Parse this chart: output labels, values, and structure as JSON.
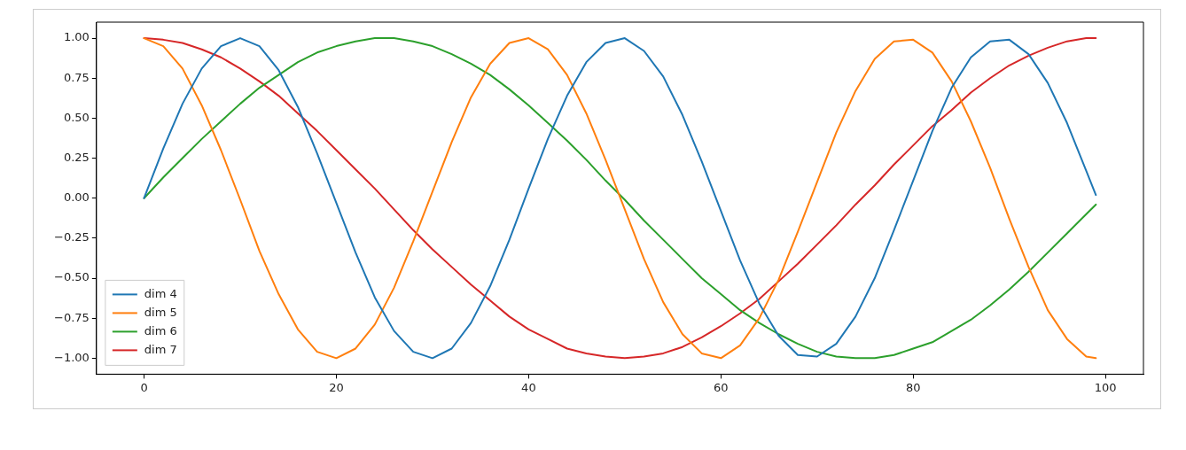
{
  "chart_data": {
    "type": "line",
    "x": [
      0,
      2,
      4,
      6,
      8,
      10,
      12,
      14,
      16,
      18,
      20,
      22,
      24,
      26,
      28,
      30,
      32,
      34,
      36,
      38,
      40,
      42,
      44,
      46,
      48,
      50,
      52,
      54,
      56,
      58,
      60,
      62,
      64,
      66,
      68,
      70,
      72,
      74,
      76,
      78,
      80,
      82,
      84,
      86,
      88,
      90,
      92,
      94,
      96,
      98,
      99
    ],
    "series": [
      {
        "name": "dim 4",
        "color": "#1f77b4",
        "values": [
          0,
          0.31,
          0.59,
          0.81,
          0.95,
          1.0,
          0.95,
          0.8,
          0.57,
          0.28,
          -0.03,
          -0.34,
          -0.62,
          -0.83,
          -0.96,
          -1.0,
          -0.94,
          -0.78,
          -0.55,
          -0.26,
          0.06,
          0.37,
          0.64,
          0.85,
          0.97,
          1.0,
          0.92,
          0.76,
          0.52,
          0.23,
          -0.08,
          -0.39,
          -0.66,
          -0.86,
          -0.98,
          -0.99,
          -0.91,
          -0.74,
          -0.5,
          -0.2,
          0.11,
          0.42,
          0.69,
          0.88,
          0.98,
          0.99,
          0.9,
          0.72,
          0.47,
          0.17,
          0.02
        ]
      },
      {
        "name": "dim 5",
        "color": "#ff7f0e",
        "values": [
          1.0,
          0.95,
          0.81,
          0.58,
          0.3,
          -0.01,
          -0.33,
          -0.6,
          -0.82,
          -0.96,
          -1.0,
          -0.94,
          -0.79,
          -0.56,
          -0.27,
          0.04,
          0.35,
          0.63,
          0.84,
          0.97,
          1.0,
          0.93,
          0.77,
          0.53,
          0.24,
          -0.07,
          -0.38,
          -0.65,
          -0.85,
          -0.97,
          -1.0,
          -0.92,
          -0.75,
          -0.51,
          -0.21,
          0.1,
          0.41,
          0.67,
          0.87,
          0.98,
          0.99,
          0.91,
          0.73,
          0.48,
          0.19,
          -0.13,
          -0.43,
          -0.7,
          -0.88,
          -0.99,
          -1.0
        ]
      },
      {
        "name": "dim 6",
        "color": "#2ca02c",
        "values": [
          0,
          0.13,
          0.25,
          0.37,
          0.48,
          0.59,
          0.69,
          0.77,
          0.85,
          0.91,
          0.95,
          0.98,
          1.0,
          1.0,
          0.98,
          0.95,
          0.9,
          0.84,
          0.77,
          0.68,
          0.58,
          0.47,
          0.36,
          0.24,
          0.11,
          -0.01,
          -0.14,
          -0.26,
          -0.38,
          -0.5,
          -0.6,
          -0.7,
          -0.78,
          -0.85,
          -0.91,
          -0.96,
          -0.99,
          -1.0,
          -1.0,
          -0.98,
          -0.94,
          -0.9,
          -0.83,
          -0.76,
          -0.67,
          -0.57,
          -0.46,
          -0.34,
          -0.22,
          -0.1,
          -0.04
        ]
      },
      {
        "name": "dim 7",
        "color": "#d62728",
        "values": [
          1.0,
          0.99,
          0.97,
          0.93,
          0.88,
          0.81,
          0.73,
          0.64,
          0.53,
          0.42,
          0.3,
          0.18,
          0.06,
          -0.07,
          -0.2,
          -0.32,
          -0.43,
          -0.54,
          -0.64,
          -0.74,
          -0.82,
          -0.88,
          -0.94,
          -0.97,
          -0.99,
          -1.0,
          -0.99,
          -0.97,
          -0.93,
          -0.87,
          -0.8,
          -0.72,
          -0.63,
          -0.52,
          -0.41,
          -0.29,
          -0.17,
          -0.04,
          0.08,
          0.21,
          0.33,
          0.45,
          0.55,
          0.66,
          0.75,
          0.83,
          0.89,
          0.94,
          0.98,
          1.0,
          1.0
        ]
      }
    ],
    "xlim": [
      -4.95,
      103.95
    ],
    "xticks": [
      0,
      20,
      40,
      60,
      80,
      100
    ],
    "ylim": [
      -1.1,
      1.1
    ],
    "yticks": [
      {
        "value": -1,
        "label": "−1.00"
      },
      {
        "value": -0.75,
        "label": "−0.75"
      },
      {
        "value": -0.5,
        "label": "−0.50"
      },
      {
        "value": -0.25,
        "label": "−0.25"
      },
      {
        "value": 0,
        "label": "0.00"
      },
      {
        "value": 0.25,
        "label": "0.25"
      },
      {
        "value": 0.5,
        "label": "0.50"
      },
      {
        "value": 0.75,
        "label": "0.75"
      },
      {
        "value": 1,
        "label": "1.00"
      }
    ],
    "legend": "bottom left",
    "marker": "none",
    "line_style": "solid",
    "grid": false
  }
}
